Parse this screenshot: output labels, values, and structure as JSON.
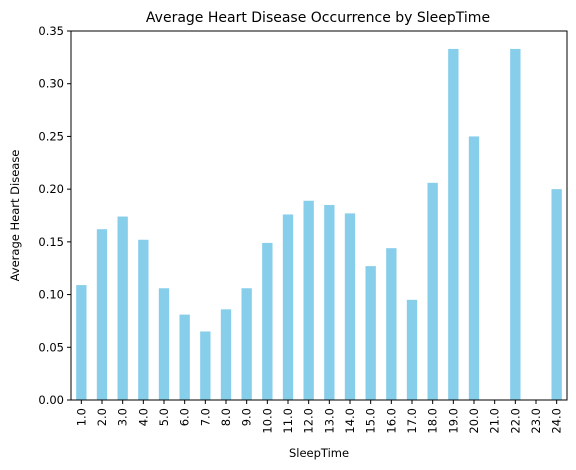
{
  "chart_data": {
    "type": "bar",
    "title": "Average Heart Disease Occurrence by SleepTime",
    "xlabel": "SleepTime",
    "ylabel": "Average Heart Disease",
    "categories": [
      "1.0",
      "2.0",
      "3.0",
      "4.0",
      "5.0",
      "6.0",
      "7.0",
      "8.0",
      "9.0",
      "10.0",
      "11.0",
      "12.0",
      "13.0",
      "14.0",
      "15.0",
      "16.0",
      "17.0",
      "18.0",
      "19.0",
      "20.0",
      "21.0",
      "22.0",
      "23.0",
      "24.0"
    ],
    "values": [
      0.109,
      0.162,
      0.174,
      0.152,
      0.106,
      0.081,
      0.065,
      0.086,
      0.106,
      0.149,
      0.176,
      0.189,
      0.185,
      0.177,
      0.127,
      0.144,
      0.095,
      0.206,
      0.333,
      0.25,
      0.0,
      0.333,
      0.0,
      0.2
    ],
    "ylim": [
      0,
      0.35
    ],
    "yticks": [
      "0.00",
      "0.05",
      "0.10",
      "0.15",
      "0.20",
      "0.25",
      "0.30",
      "0.35"
    ],
    "bar_color": "#87ceeb",
    "grid": false,
    "legend": "none"
  }
}
